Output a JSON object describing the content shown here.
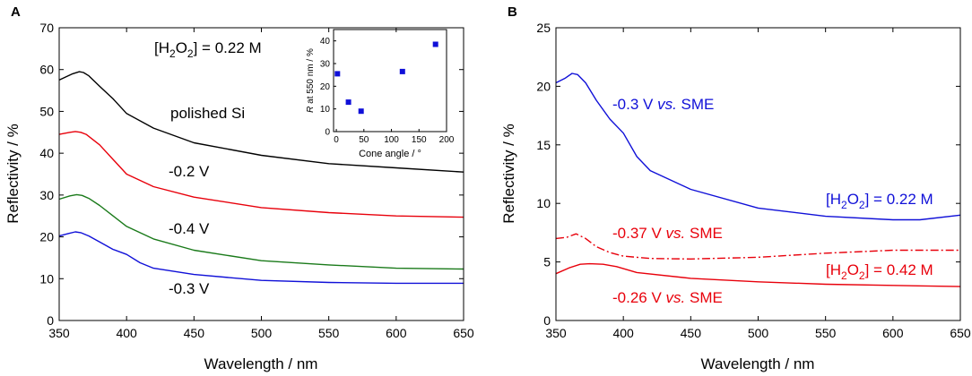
{
  "chart_data": [
    {
      "panel": "A",
      "type": "line",
      "xlabel": "Wavelength / nm",
      "ylabel": "Reflectivity / %",
      "xlim": [
        350,
        650
      ],
      "ylim": [
        0,
        70
      ],
      "xticks": [
        350,
        400,
        450,
        500,
        550,
        600,
        650
      ],
      "yticks": [
        0,
        10,
        20,
        30,
        40,
        50,
        60,
        70
      ],
      "annotation_prefix": "[H",
      "annotation_sub1": "2",
      "annotation_mid": "O",
      "annotation_sub2": "2",
      "annotation_suffix": "] = 0.22 M",
      "series": [
        {
          "name": "polished Si",
          "label": "polished Si",
          "color": "#000000",
          "dash": "solid",
          "x": [
            350,
            360,
            365,
            368,
            372,
            380,
            390,
            400,
            420,
            450,
            500,
            550,
            600,
            650
          ],
          "y": [
            57.5,
            59,
            59.5,
            59.3,
            58.5,
            56,
            53,
            49.5,
            46,
            42.5,
            39.5,
            37.5,
            36.5,
            35.5
          ]
        },
        {
          "name": "-0.2 V",
          "label": "-0.2 V",
          "color": "#e8000b",
          "dash": "solid",
          "x": [
            350,
            358,
            362,
            366,
            370,
            380,
            390,
            400,
            420,
            450,
            500,
            550,
            600,
            650
          ],
          "y": [
            44.5,
            45,
            45.2,
            45,
            44.5,
            42,
            38.5,
            35,
            32,
            29.5,
            27,
            25.8,
            25,
            24.7
          ]
        },
        {
          "name": "-0.4 V",
          "label": "-0.4 V",
          "color": "#1a7a1a",
          "dash": "solid",
          "x": [
            350,
            358,
            363,
            367,
            372,
            380,
            390,
            400,
            420,
            450,
            500,
            550,
            600,
            650
          ],
          "y": [
            29,
            29.8,
            30.1,
            29.9,
            29.2,
            27.5,
            25,
            22.5,
            19.5,
            16.8,
            14.3,
            13.3,
            12.5,
            12.3
          ]
        },
        {
          "name": "-0.3 V",
          "label": "-0.3 V",
          "color": "#1010d8",
          "dash": "solid",
          "x": [
            350,
            357,
            362,
            366,
            372,
            380,
            390,
            400,
            410,
            420,
            450,
            500,
            550,
            600,
            650
          ],
          "y": [
            20.2,
            20.8,
            21.2,
            21,
            20.2,
            18.8,
            17,
            15.8,
            13.8,
            12.5,
            11,
            9.6,
            9.1,
            8.9,
            8.9
          ]
        }
      ],
      "inset": {
        "type": "scatter",
        "xlabel": "Cone angle / °",
        "ylabel_italic": "R",
        "ylabel_rest": " at 550 nm / %",
        "xlim": [
          -5,
          200
        ],
        "ylim": [
          0,
          45
        ],
        "xticks": [
          0,
          50,
          100,
          150,
          200
        ],
        "yticks": [
          0,
          10,
          20,
          30,
          40
        ],
        "color": "#1010d8",
        "x": [
          2,
          22,
          45,
          120,
          180
        ],
        "y": [
          25.5,
          13,
          9,
          26.5,
          38.5
        ]
      }
    },
    {
      "panel": "B",
      "type": "line",
      "xlabel": "Wavelength / nm",
      "ylabel": "Reflectivity / %",
      "xlim": [
        350,
        650
      ],
      "ylim": [
        0,
        25
      ],
      "xticks": [
        350,
        400,
        450,
        500,
        550,
        600,
        650
      ],
      "yticks": [
        0,
        5,
        10,
        15,
        20,
        25
      ],
      "series": [
        {
          "name": "-0.3 V vs. SME",
          "color": "#1010d8",
          "dash": "solid",
          "x": [
            350,
            357,
            362,
            366,
            372,
            380,
            390,
            400,
            410,
            420,
            450,
            500,
            550,
            600,
            620,
            650
          ],
          "y": [
            20.3,
            20.7,
            21.1,
            21,
            20.3,
            18.8,
            17.2,
            16,
            14,
            12.8,
            11.2,
            9.6,
            8.9,
            8.6,
            8.6,
            9
          ]
        },
        {
          "name": "-0.37 V vs. SME",
          "color": "#e8000b",
          "dash": "dashdot",
          "x": [
            350,
            358,
            365,
            372,
            380,
            390,
            400,
            420,
            450,
            500,
            550,
            600,
            650
          ],
          "y": [
            7,
            7.1,
            7.4,
            7,
            6.3,
            5.8,
            5.5,
            5.3,
            5.25,
            5.4,
            5.75,
            6,
            6
          ]
        },
        {
          "name": "-0.26 V vs. SME",
          "color": "#e8000b",
          "dash": "solid",
          "x": [
            350,
            360,
            368,
            375,
            385,
            395,
            410,
            450,
            500,
            550,
            600,
            650
          ],
          "y": [
            4,
            4.5,
            4.8,
            4.85,
            4.8,
            4.6,
            4.1,
            3.6,
            3.3,
            3.1,
            3.0,
            2.9
          ]
        }
      ],
      "labels": [
        {
          "pre": "-0.3 V ",
          "vs": "vs.",
          "post": " SME",
          "color": "#1010d8"
        },
        {
          "pre": "-0.37 V ",
          "vs": "vs.",
          "post": " SME",
          "color": "#e8000b"
        },
        {
          "pre": "-0.26 V ",
          "vs": "vs.",
          "post": " SME",
          "color": "#e8000b"
        }
      ],
      "conc_labels": [
        {
          "prefix": "[H",
          "sub1": "2",
          "mid": "O",
          "sub2": "2",
          "suffix": "] = 0.22 M",
          "color": "#1010d8"
        },
        {
          "prefix": "[H",
          "sub1": "2",
          "mid": "O",
          "sub2": "2",
          "suffix": "] = 0.42 M",
          "color": "#e8000b"
        }
      ]
    }
  ]
}
